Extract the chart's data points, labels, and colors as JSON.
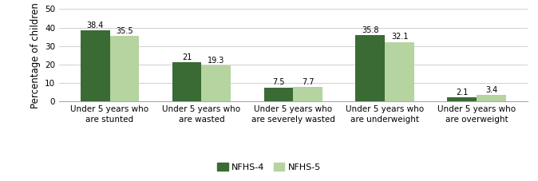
{
  "categories": [
    "Under 5 years who\nare stunted",
    "Under 5 years who\nare wasted",
    "Under 5 years who\nare severely wasted",
    "Under 5 years who\nare underweight",
    "Under 5 years who\nare overweight"
  ],
  "nfhs4_values": [
    38.4,
    21,
    7.5,
    35.8,
    2.1
  ],
  "nfhs5_values": [
    35.5,
    19.3,
    7.7,
    32.1,
    3.4
  ],
  "nfhs4_color": "#3a6b35",
  "nfhs5_color": "#b5d4a0",
  "ylabel": "Percentage of children",
  "ylim": [
    0,
    50
  ],
  "yticks": [
    0,
    10,
    20,
    30,
    40,
    50
  ],
  "legend_labels": [
    "NFHS-4",
    "NFHS-5"
  ],
  "bar_width": 0.32,
  "value_fontsize": 7,
  "ylabel_fontsize": 8.5,
  "tick_fontsize": 7.5,
  "legend_fontsize": 8,
  "grid_color": "#d0d0d0"
}
